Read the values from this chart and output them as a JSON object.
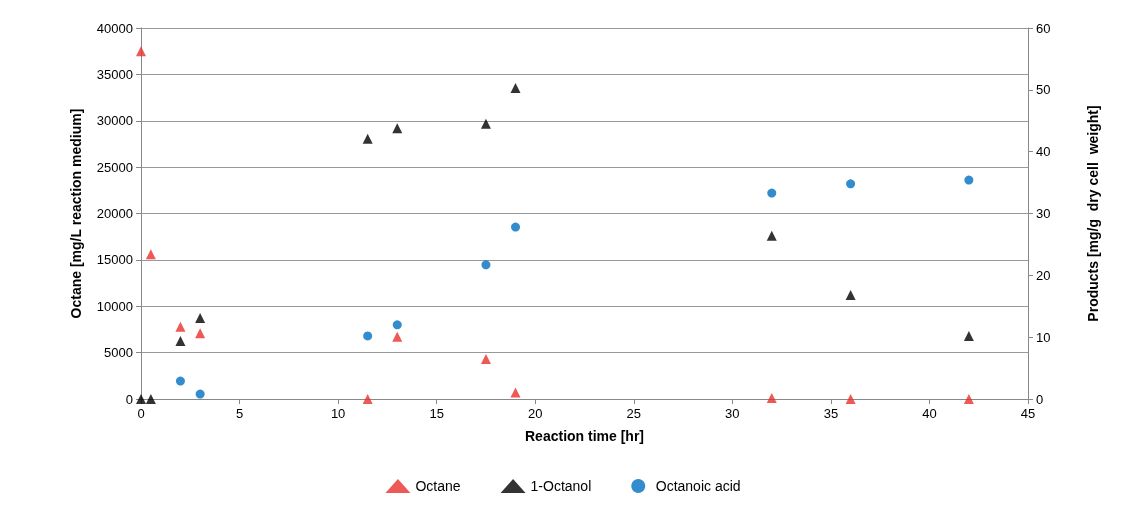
{
  "chart_data": {
    "type": "scatter",
    "xlabel": "Reaction time [hr]",
    "ylabel": "Octane [mg/L reaction medium]",
    "y2label": "Products [mg/g  dry cell  weight]",
    "xlim": [
      0,
      45
    ],
    "xticks": [
      0,
      5,
      10,
      15,
      20,
      25,
      30,
      35,
      40,
      45
    ],
    "ylim": [
      0,
      40000
    ],
    "yticks": [
      0,
      5000,
      10000,
      15000,
      20000,
      25000,
      30000,
      35000,
      40000
    ],
    "y2lim": [
      0,
      60
    ],
    "y2ticks": [
      0,
      10,
      20,
      30,
      40,
      50,
      60
    ],
    "grid": "y",
    "legend": "bottom",
    "series": [
      {
        "name": "Octane",
        "color": "#e8302a",
        "marker": "triangle",
        "x": [
          0,
          0.5,
          2,
          3,
          11.5,
          13,
          17.5,
          19,
          32,
          36,
          42
        ],
        "values": [
          37500,
          15600,
          7800,
          7100,
          0,
          6700,
          4300,
          700,
          100,
          0,
          0
        ]
      },
      {
        "name": "1-Octanol",
        "color": "#000000",
        "marker": "triangle",
        "axis": "y2",
        "x": [
          0,
          0.5,
          2,
          3,
          11.5,
          13,
          17.5,
          19,
          32,
          36,
          42
        ],
        "values": [
          0,
          0,
          9.4,
          13.1,
          42.1,
          43.8,
          44.5,
          50.3,
          26.4,
          16.8,
          10.2
        ]
      },
      {
        "name": "Octanoic acid",
        "color": "#0070c0",
        "marker": "circle",
        "axis": "y2",
        "x": [
          2,
          3,
          11.5,
          13,
          17.5,
          19,
          32,
          36,
          42
        ],
        "values": [
          2.9,
          0.8,
          10.2,
          12.0,
          21.7,
          27.8,
          33.3,
          34.8,
          35.4
        ]
      }
    ]
  }
}
